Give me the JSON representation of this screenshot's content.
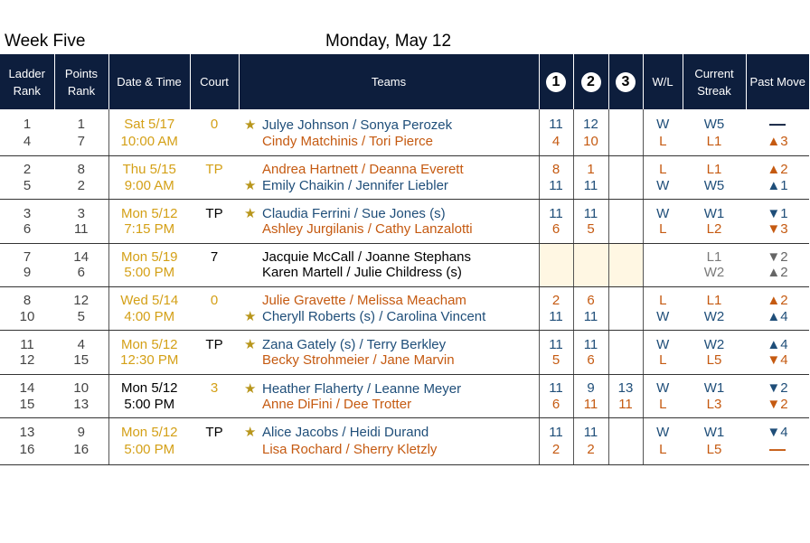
{
  "header": {
    "week": "Week Five",
    "date": "Monday, May 12"
  },
  "columns": {
    "ladder_rank": [
      "Ladder",
      "Rank"
    ],
    "points_rank": [
      "Points",
      "Rank"
    ],
    "date_time": "Date & Time",
    "court": "Court",
    "teams": "Teams",
    "set1": "1",
    "set2": "2",
    "set3": "3",
    "wl": "W/L",
    "streak": [
      "Current",
      "Streak"
    ],
    "past_move": "Past Move"
  },
  "colors": {
    "header_bg": "#0d1e3d",
    "winner_blue": "#1f4e79",
    "loser_orange": "#c55a11",
    "scheduled_gold": "#d4a017",
    "star_gold": "#b8961c",
    "pending_cell": "#fff7e3"
  },
  "matches": [
    {
      "players": [
        {
          "ladder": "1",
          "points": "1",
          "datetime": "Sat 5/17",
          "court": "0",
          "star": true,
          "team": "Julye Johnson / Sonya Perozek",
          "s1": "11",
          "s2": "12",
          "s3": "",
          "wl": "W",
          "streak": "W5",
          "move": "—",
          "move_icon": "dash-icon"
        },
        {
          "ladder": "4",
          "points": "7",
          "datetime": "10:00 AM",
          "court": "",
          "star": false,
          "team": "Cindy Matchinis / Tori Pierce",
          "s1": "4",
          "s2": "10",
          "s3": "",
          "wl": "L",
          "streak": "L1",
          "move": "▲3",
          "move_icon": "up-arrow-icon"
        }
      ]
    },
    {
      "players": [
        {
          "ladder": "2",
          "points": "8",
          "datetime": "Thu 5/15",
          "court": "TP",
          "star": false,
          "team": "Andrea Hartnett / Deanna Everett",
          "s1": "8",
          "s2": "1",
          "s3": "",
          "wl": "L",
          "streak": "L1",
          "move": "▲2",
          "move_icon": "up-arrow-icon"
        },
        {
          "ladder": "5",
          "points": "2",
          "datetime": "9:00 AM",
          "court": "",
          "star": true,
          "team": "Emily Chaikin / Jennifer Liebler",
          "s1": "11",
          "s2": "11",
          "s3": "",
          "wl": "W",
          "streak": "W5",
          "move": "▲1",
          "move_icon": "up-arrow-icon"
        }
      ]
    },
    {
      "players": [
        {
          "ladder": "3",
          "points": "3",
          "datetime": "Mon 5/12",
          "court": "TP",
          "star": true,
          "team": "Claudia Ferrini / Sue Jones (s)",
          "s1": "11",
          "s2": "11",
          "s3": "",
          "wl": "W",
          "streak": "W1",
          "move": "▼1",
          "move_icon": "down-arrow-icon"
        },
        {
          "ladder": "6",
          "points": "11",
          "datetime": "7:15 PM",
          "court": "",
          "star": false,
          "team": "Ashley Jurgilanis / Cathy Lanzalotti",
          "s1": "6",
          "s2": "5",
          "s3": "",
          "wl": "L",
          "streak": "L2",
          "move": "▼3",
          "move_icon": "down-arrow-icon"
        }
      ]
    },
    {
      "players": [
        {
          "ladder": "7",
          "points": "14",
          "datetime": "Mon 5/19",
          "court": "7",
          "star": false,
          "team": "Jacquie McCall / Joanne Stephans",
          "s1": "",
          "s2": "",
          "s3": "",
          "wl": "",
          "streak": "L1",
          "move": "▼2",
          "move_icon": "down-arrow-icon"
        },
        {
          "ladder": "9",
          "points": "6",
          "datetime": "5:00 PM",
          "court": "",
          "star": false,
          "team": "Karen Martell / Julie Childress (s)",
          "s1": "",
          "s2": "",
          "s3": "",
          "wl": "",
          "streak": "W2",
          "move": "▲2",
          "move_icon": "up-arrow-icon"
        }
      ]
    },
    {
      "players": [
        {
          "ladder": "8",
          "points": "12",
          "datetime": "Wed 5/14",
          "court": "0",
          "star": false,
          "team": "Julie Gravette / Melissa Meacham",
          "s1": "2",
          "s2": "6",
          "s3": "",
          "wl": "L",
          "streak": "L1",
          "move": "▲2",
          "move_icon": "up-arrow-icon"
        },
        {
          "ladder": "10",
          "points": "5",
          "datetime": "4:00 PM",
          "court": "",
          "star": true,
          "team": "Cheryll Roberts (s) / Carolina Vincent",
          "s1": "11",
          "s2": "11",
          "s3": "",
          "wl": "W",
          "streak": "W2",
          "move": "▲4",
          "move_icon": "up-arrow-icon"
        }
      ]
    },
    {
      "players": [
        {
          "ladder": "11",
          "points": "4",
          "datetime": "Mon 5/12",
          "court": "TP",
          "star": true,
          "team": "Zana Gately (s) / Terry Berkley",
          "s1": "11",
          "s2": "11",
          "s3": "",
          "wl": "W",
          "streak": "W2",
          "move": "▲4",
          "move_icon": "up-arrow-icon"
        },
        {
          "ladder": "12",
          "points": "15",
          "datetime": "12:30 PM",
          "court": "",
          "star": false,
          "team": "Becky Strohmeier / Jane Marvin",
          "s1": "5",
          "s2": "6",
          "s3": "",
          "wl": "L",
          "streak": "L5",
          "move": "▼4",
          "move_icon": "down-arrow-icon"
        }
      ]
    },
    {
      "players": [
        {
          "ladder": "14",
          "points": "10",
          "datetime": "Mon 5/12",
          "court": "3",
          "star": true,
          "team": "Heather Flaherty / Leanne Meyer",
          "s1": "11",
          "s2": "9",
          "s3": "13",
          "wl": "W",
          "streak": "W1",
          "move": "▼2",
          "move_icon": "down-arrow-icon"
        },
        {
          "ladder": "15",
          "points": "13",
          "datetime": "5:00 PM",
          "court": "",
          "star": false,
          "team": "Anne DiFini / Dee Trotter",
          "s1": "6",
          "s2": "11",
          "s3": "11",
          "wl": "L",
          "streak": "L3",
          "move": "▼2",
          "move_icon": "down-arrow-icon"
        }
      ]
    },
    {
      "players": [
        {
          "ladder": "13",
          "points": "9",
          "datetime": "Mon 5/12",
          "court": "TP",
          "star": true,
          "team": "Alice Jacobs / Heidi Durand",
          "s1": "11",
          "s2": "11",
          "s3": "",
          "wl": "W",
          "streak": "W1",
          "move": "▼4",
          "move_icon": "down-arrow-icon"
        },
        {
          "ladder": "16",
          "points": "16",
          "datetime": "5:00 PM",
          "court": "",
          "star": false,
          "team": "Lisa Rochard / Sherry Kletzly",
          "s1": "2",
          "s2": "2",
          "s3": "",
          "wl": "L",
          "streak": "L5",
          "move": "—",
          "move_icon": "dash-icon"
        }
      ]
    }
  ]
}
